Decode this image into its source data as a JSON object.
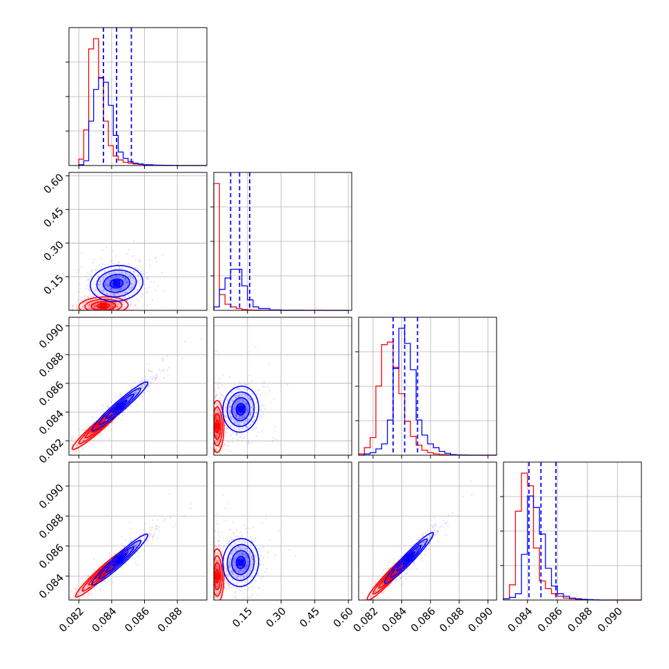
{
  "chart_data": {
    "type": "corner",
    "grid": true,
    "legend": "none",
    "colors": {
      "series_a": "#ff0000",
      "series_b": "#0000ff"
    },
    "params": [
      {
        "range": [
          0.0814,
          0.0898
        ],
        "ticks": [
          0.082,
          0.084,
          0.086,
          0.088
        ],
        "tick_labels": [
          "0.082",
          "0.084",
          "0.086",
          "0.088"
        ]
      },
      {
        "range": [
          0.0,
          0.615
        ],
        "ticks": [
          0.15,
          0.3,
          0.45,
          0.6
        ],
        "tick_labels": [
          "0.15",
          "0.30",
          "0.45",
          "0.60"
        ]
      },
      {
        "range": [
          0.081,
          0.0906
        ],
        "ticks": [
          0.082,
          0.084,
          0.086,
          0.088,
          0.09
        ],
        "tick_labels": [
          "0.082",
          "0.084",
          "0.086",
          "0.088",
          "0.090"
        ]
      },
      {
        "range": [
          0.0824,
          0.0916
        ],
        "ticks": [
          0.084,
          0.086,
          0.088,
          0.09
        ],
        "tick_labels": [
          "0.084",
          "0.086",
          "0.088",
          "0.090"
        ]
      }
    ],
    "quantiles_series_b": [
      [
        0.0835,
        0.0843,
        0.0852
      ],
      [
        0.075,
        0.115,
        0.16
      ],
      [
        0.0834,
        0.0842,
        0.0851
      ],
      [
        0.0841,
        0.0849,
        0.0859
      ]
    ],
    "marginals": [
      {
        "edges": [
          0.082,
          0.0823,
          0.0826,
          0.0829,
          0.0832,
          0.0835,
          0.0838,
          0.0841,
          0.0844,
          0.0847,
          0.085,
          0.0853,
          0.0856,
          0.0859,
          0.0862,
          0.0865,
          0.0868,
          0.0871,
          0.0874,
          0.0877,
          0.088,
          0.0883,
          0.0886,
          0.0889,
          0.0898
        ],
        "series_a": [
          0.08,
          0.45,
          1.47,
          1.6,
          1.1,
          0.56,
          0.25,
          0.12,
          0.07,
          0.04,
          0.03,
          0.02,
          0.015,
          0.01,
          0.005,
          0.003,
          0.002,
          0.001,
          0,
          0,
          0,
          0,
          0,
          0
        ],
        "series_b": [
          0.01,
          0.06,
          0.56,
          0.96,
          1.11,
          1.05,
          0.76,
          0.38,
          0.17,
          0.09,
          0.05,
          0.03,
          0.02,
          0.01,
          0.01,
          0.005,
          0.004,
          0.003,
          0.002,
          0.001,
          0,
          0,
          0,
          0
        ]
      },
      {
        "edges": [
          0.0,
          0.025,
          0.05,
          0.075,
          0.1,
          0.125,
          0.15,
          0.175,
          0.2,
          0.25,
          0.3,
          0.4,
          0.5,
          0.6
        ],
        "series_a": [
          1.45,
          0.18,
          0.07,
          0.04,
          0.02,
          0.01,
          0.005,
          0.003,
          0.002,
          0.001,
          0,
          0,
          0
        ],
        "series_b": [
          0.04,
          0.24,
          0.37,
          0.47,
          0.47,
          0.28,
          0.12,
          0.04,
          0.02,
          0.005,
          0.002,
          0.001,
          0
        ]
      },
      {
        "edges": [
          0.081,
          0.0814,
          0.0818,
          0.0822,
          0.0826,
          0.083,
          0.0834,
          0.0838,
          0.0842,
          0.0846,
          0.085,
          0.0854,
          0.0858,
          0.0862,
          0.0866,
          0.087,
          0.0874,
          0.0878,
          0.0882,
          0.0886,
          0.089,
          0.0906
        ],
        "series_a": [
          0.01,
          0.06,
          0.14,
          0.55,
          0.88,
          0.9,
          0.7,
          0.49,
          0.27,
          0.15,
          0.08,
          0.04,
          0.02,
          0.01,
          0.005,
          0.003,
          0.002,
          0.001,
          0,
          0,
          0
        ],
        "series_b": [
          0,
          0.01,
          0.02,
          0.05,
          0.09,
          0.28,
          0.69,
          1.01,
          0.89,
          0.68,
          0.28,
          0.16,
          0.09,
          0.06,
          0.03,
          0.015,
          0.005,
          0.002,
          0.001,
          0,
          0
        ]
      },
      {
        "edges": [
          0.0824,
          0.0828,
          0.0832,
          0.0836,
          0.084,
          0.0844,
          0.0848,
          0.0852,
          0.0856,
          0.086,
          0.0864,
          0.0868,
          0.0872,
          0.0876,
          0.088,
          0.0884,
          0.0888,
          0.0892,
          0.0896,
          0.09,
          0.0916
        ],
        "series_a": [
          0.01,
          0.12,
          0.7,
          1.0,
          0.9,
          0.41,
          0.15,
          0.09,
          0.05,
          0.03,
          0.015,
          0.01,
          0.005,
          0.003,
          0.001,
          0,
          0,
          0,
          0,
          0
        ],
        "series_b": [
          0.01,
          0.02,
          0.05,
          0.36,
          0.82,
          0.73,
          0.52,
          0.25,
          0.11,
          0.05,
          0.03,
          0.015,
          0.01,
          0.005,
          0.003,
          0.001,
          0,
          0,
          0,
          0
        ]
      }
    ],
    "joint_panels": [
      {
        "row": 1,
        "col": 0,
        "series_a": {
          "mean": [
            0.0835,
            0.02
          ],
          "sd": [
            0.00075,
            0.02
          ],
          "rho": 0.1
        },
        "series_b": {
          "mean": [
            0.0843,
            0.12
          ],
          "sd": [
            0.0008,
            0.04
          ],
          "rho": 0.1
        }
      },
      {
        "row": 2,
        "col": 0,
        "series_a": {
          "mean": [
            0.0832,
            0.083
          ],
          "sd": [
            0.0008,
            0.0008
          ],
          "rho": 0.96
        },
        "series_b": {
          "mean": [
            0.0845,
            0.0844
          ],
          "sd": [
            0.00085,
            0.00085
          ],
          "rho": 0.96
        }
      },
      {
        "row": 2,
        "col": 1,
        "series_a": {
          "mean": [
            0.015,
            0.083
          ],
          "sd": [
            0.015,
            0.0009
          ],
          "rho": 0.0
        },
        "series_b": {
          "mean": [
            0.12,
            0.0842
          ],
          "sd": [
            0.04,
            0.0008
          ],
          "rho": 0.05
        }
      },
      {
        "row": 3,
        "col": 0,
        "series_a": {
          "mean": [
            0.0834,
            0.0842
          ],
          "sd": [
            0.0008,
            0.0008
          ],
          "rho": 0.96
        },
        "series_b": {
          "mean": [
            0.0845,
            0.0851
          ],
          "sd": [
            0.00085,
            0.00085
          ],
          "rho": 0.96
        }
      },
      {
        "row": 3,
        "col": 1,
        "series_a": {
          "mean": [
            0.015,
            0.084
          ],
          "sd": [
            0.015,
            0.0009
          ],
          "rho": 0.0
        },
        "series_b": {
          "mean": [
            0.12,
            0.0849
          ],
          "sd": [
            0.04,
            0.0008
          ],
          "rho": 0.05
        }
      },
      {
        "row": 3,
        "col": 2,
        "series_a": {
          "mean": [
            0.0832,
            0.084
          ],
          "sd": [
            0.0008,
            0.0008
          ],
          "rho": 0.96
        },
        "series_b": {
          "mean": [
            0.0845,
            0.0852
          ],
          "sd": [
            0.00085,
            0.00085
          ],
          "rho": 0.96
        }
      }
    ]
  }
}
